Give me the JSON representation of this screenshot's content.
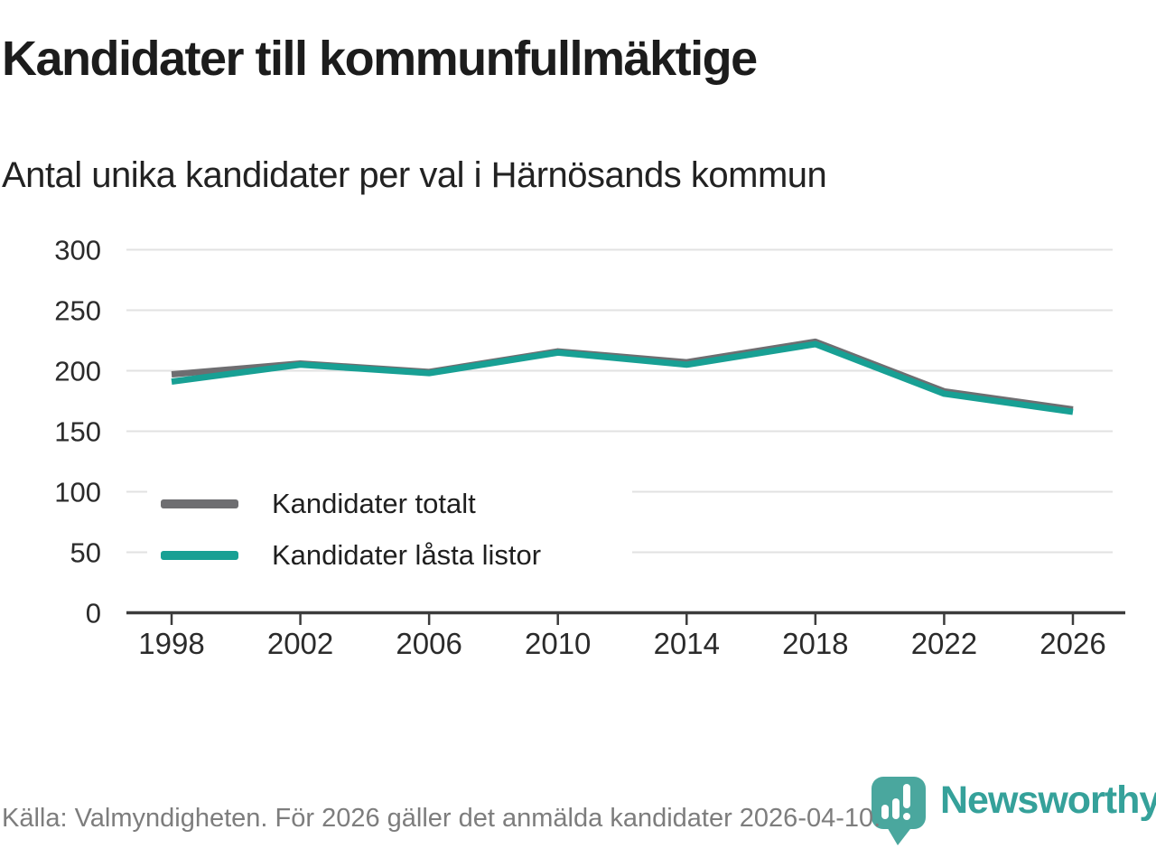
{
  "chart_data": {
    "type": "line",
    "title": "Kandidater till kommunfullmäktige",
    "subtitle": "Antal unika kandidater per val i Härnösands kommun",
    "categories": [
      "1998",
      "2002",
      "2006",
      "2010",
      "2014",
      "2018",
      "2022",
      "2026"
    ],
    "series": [
      {
        "name": "Kandidater totalt",
        "color": "#6e6e71",
        "values": [
          197,
          206,
          199,
          216,
          207,
          224,
          183,
          168
        ]
      },
      {
        "name": "Kandidater låsta listor",
        "color": "#18a094",
        "values": [
          191,
          205,
          198,
          215,
          205,
          222,
          181,
          166
        ]
      }
    ],
    "ylim": [
      0,
      300
    ],
    "y_ticks": [
      0,
      50,
      100,
      150,
      200,
      250,
      300
    ],
    "xlabel": "",
    "ylabel": "",
    "grid": "horizontal",
    "legend_position": "inside-left"
  },
  "footer": {
    "source_text": "Källa: Valmyndigheten. För 2026 gäller det anmälda kandidater 2026-04-10.",
    "brand_name": "Newsworthy"
  },
  "colors": {
    "grid_line": "#e2e2e2",
    "axis_line": "#3c3c3c",
    "tick_label": "#2b2b2b",
    "footer_text": "#7d7d7d",
    "brand_teal": "#35a19a",
    "brand_icon_teal": "#4aa79e"
  }
}
